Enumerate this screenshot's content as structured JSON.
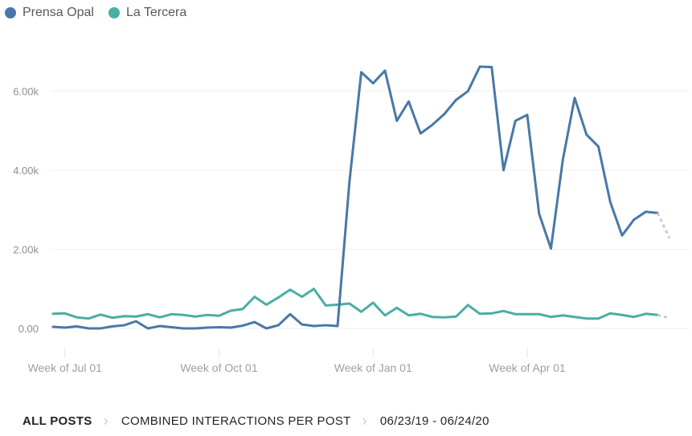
{
  "legend": [
    {
      "label": "Prensa Opal",
      "color": "#4878a8"
    },
    {
      "label": "La Tercera",
      "color": "#4aaea4"
    }
  ],
  "breadcrumb": {
    "all_posts": "ALL POSTS",
    "metric": "COMBINED INTERACTIONS PER POST",
    "date_range": "06/23/19 - 06/24/20",
    "separator_icon": "chevron-right-icon"
  },
  "chart_data": {
    "type": "line",
    "xlabel": "",
    "ylabel": "",
    "ylim": [
      0,
      6600
    ],
    "grid": "horizontal",
    "legend_position": "top-left",
    "yticks": [
      0,
      2000,
      4000,
      6000
    ],
    "ytick_labels": [
      "0.00",
      "2.00k",
      "4.00k",
      "6.00k"
    ],
    "xticks": [
      1,
      14,
      27,
      40
    ],
    "xtick_labels": [
      "Week of Jul 01",
      "Week of Oct 01",
      "Week of Jan 01",
      "Week of Apr 01"
    ],
    "x_count": 53,
    "projected_from_index": 51,
    "series": [
      {
        "name": "Prensa Opal",
        "color": "#4878a8",
        "values": [
          40,
          20,
          50,
          0,
          0,
          50,
          80,
          180,
          0,
          60,
          30,
          0,
          0,
          20,
          30,
          20,
          70,
          160,
          0,
          80,
          360,
          100,
          60,
          80,
          60,
          3700,
          6480,
          6200,
          6520,
          5250,
          5740,
          4930,
          5150,
          5420,
          5780,
          6000,
          6620,
          6610,
          4000,
          5250,
          5400,
          2900,
          2020,
          4260,
          5830,
          4900,
          4600,
          3200,
          2350,
          2750,
          2950,
          2920,
          2280
        ]
      },
      {
        "name": "La Tercera",
        "color": "#4aaea4",
        "values": [
          370,
          380,
          280,
          250,
          350,
          270,
          310,
          300,
          360,
          280,
          360,
          340,
          300,
          340,
          320,
          450,
          490,
          800,
          600,
          780,
          980,
          800,
          1000,
          580,
          600,
          630,
          420,
          650,
          330,
          520,
          330,
          370,
          290,
          280,
          300,
          590,
          370,
          380,
          440,
          360,
          360,
          360,
          290,
          330,
          290,
          250,
          250,
          380,
          340,
          290,
          370,
          340,
          260
        ]
      }
    ]
  }
}
